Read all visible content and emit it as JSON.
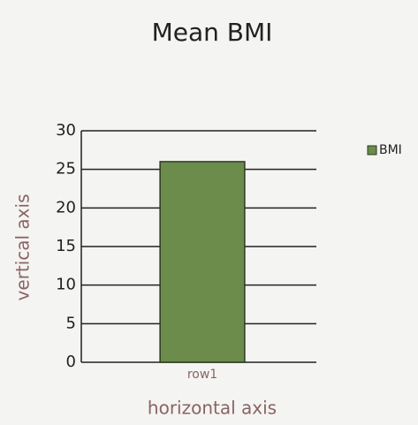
{
  "chart_data": {
    "type": "bar",
    "title": "Mean BMI",
    "x_label": "horizontal axis",
    "y_label": "vertical axis",
    "categories": [
      "row1"
    ],
    "series": [
      {
        "name": "BMI",
        "color": "#6b8c4a",
        "values": [
          26
        ]
      }
    ],
    "ylim": [
      0,
      30
    ],
    "yticks": [
      0,
      5,
      10,
      15,
      20,
      25,
      30
    ],
    "grid": true,
    "legend": "right"
  }
}
